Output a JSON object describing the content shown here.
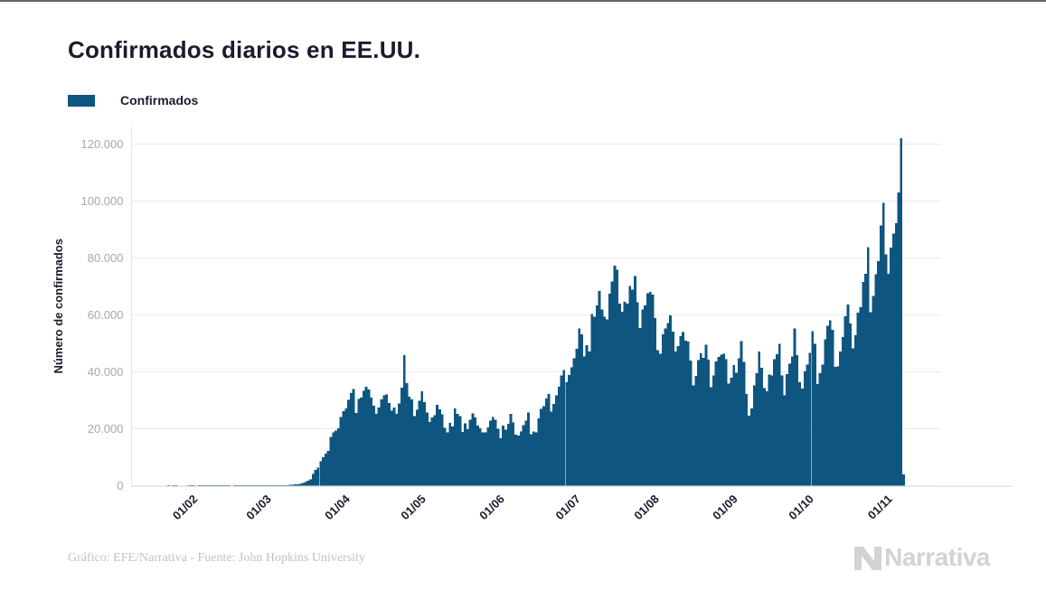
{
  "page": {
    "background": "#ffffff",
    "top_border_color": "#4a4a4a"
  },
  "header": {
    "title": "Confirmados diarios en EE.UU."
  },
  "legend": {
    "items": [
      {
        "label": "Confirmados",
        "color": "#0e5680"
      }
    ]
  },
  "chart_data": {
    "type": "bar",
    "title": "Confirmados diarios en EE.UU.",
    "xlabel": "",
    "ylabel": "Número de confirmados",
    "legend_position": "top-left",
    "grid": "horizontal",
    "bar_color": "#0e5680",
    "ylim": [
      0,
      126000
    ],
    "ytick_values": [
      0,
      20000,
      40000,
      60000,
      80000,
      100000,
      120000
    ],
    "ytick_labels": [
      "0",
      "20.000",
      "40.000",
      "60.000",
      "80.000",
      "100.000",
      "120.000"
    ],
    "x_ticks": [
      {
        "label": "01/02",
        "index": 10
      },
      {
        "label": "01/03",
        "index": 39
      },
      {
        "label": "01/04",
        "index": 70
      },
      {
        "label": "01/05",
        "index": 100
      },
      {
        "label": "01/06",
        "index": 131
      },
      {
        "label": "01/07",
        "index": 161
      },
      {
        "label": "01/08",
        "index": 192
      },
      {
        "label": "01/09",
        "index": 223
      },
      {
        "label": "01/10",
        "index": 253
      },
      {
        "label": "01/11",
        "index": 284
      }
    ],
    "series": [
      {
        "name": "Confirmados",
        "color": "#0e5680",
        "values": [
          1,
          0,
          1,
          3,
          0,
          0,
          0,
          0,
          2,
          1,
          1,
          0,
          2,
          1,
          2,
          1,
          1,
          2,
          1,
          2,
          3,
          1,
          2,
          2,
          1,
          0,
          2,
          1,
          2,
          1,
          3,
          2,
          4,
          3,
          5,
          6,
          6,
          7,
          8,
          30,
          25,
          35,
          55,
          70,
          110,
          120,
          100,
          130,
          270,
          330,
          400,
          520,
          680,
          900,
          1200,
          1800,
          2300,
          4200,
          5600,
          6300,
          8500,
          10000,
          11200,
          12200,
          17100,
          18700,
          19400,
          20200,
          24100,
          26200,
          27100,
          30100,
          32500,
          33900,
          25600,
          30400,
          30900,
          33300,
          34800,
          33800,
          30900,
          28100,
          25200,
          27400,
          30300,
          31700,
          32100,
          29100,
          26300,
          27500,
          25200,
          28900,
          34500,
          45900,
          36100,
          31200,
          30300,
          24400,
          26600,
          29800,
          33100,
          29400,
          25700,
          22400,
          23900,
          24800,
          28400,
          26900,
          25100,
          20300,
          18700,
          22100,
          20800,
          27200,
          25200,
          24500,
          18900,
          21900,
          19800,
          23200,
          25400,
          23900,
          21100,
          20100,
          18700,
          18800,
          20400,
          22800,
          24100,
          23100,
          20000,
          16700,
          21100,
          19700,
          21800,
          25300,
          22300,
          17900,
          17700,
          19000,
          21200,
          22900,
          25700,
          18100,
          19100,
          18700,
          23600,
          27000,
          27900,
          30600,
          32300,
          26100,
          28800,
          31800,
          34800,
          38800,
          40600,
          36300,
          38900,
          41600,
          44700,
          48100,
          55300,
          53200,
          45400,
          49300,
          47200,
          60300,
          59400,
          63300,
          68400,
          61900,
          59400,
          58400,
          67400,
          71800,
          77300,
          75800,
          63900,
          61100,
          64600,
          64000,
          70200,
          68900,
          73600,
          64400,
          55400,
          61900,
          63300,
          67700,
          68100,
          67100,
          58900,
          47700,
          46400,
          53200,
          55300,
          57200,
          59800,
          54200,
          47200,
          49100,
          52600,
          53900,
          51000,
          50600,
          44000,
          35200,
          38600,
          44100,
          46500,
          44900,
          49500,
          44300,
          34600,
          38800,
          43600,
          45200,
          46000,
          46300,
          44500,
          35800,
          38000,
          42400,
          39700,
          44700,
          50800,
          43500,
          32200,
          24600,
          27100,
          35300,
          39500,
          47100,
          41500,
          34300,
          33100,
          39000,
          38700,
          44400,
          46200,
          49800,
          38800,
          31800,
          39200,
          42900,
          45400,
          55300,
          45900,
          36400,
          34200,
          40100,
          42600,
          46700,
          54300,
          49900,
          35700,
          39500,
          42600,
          51500,
          56200,
          58100,
          54700,
          41800,
          41900,
          47200,
          52300,
          59500,
          63700,
          57000,
          48200,
          52800,
          60800,
          62700,
          71600,
          74400,
          83800,
          61000,
          66600,
          74300,
          78900,
          91500,
          99300,
          81200,
          74500,
          83700,
          88600,
          92200,
          103000,
          122000,
          3900
        ]
      }
    ]
  },
  "footer": {
    "credit": "Gráfico: EFE/Narrativa - Fuente: John Hopkins University",
    "logo_text": "Narrativa"
  },
  "colors": {
    "bar": "#0e5680",
    "title_text": "#1b1b2d",
    "axis_tick_text": "#a8a8a8",
    "x_tick_text": "#1b1b2d",
    "gridline": "#ececec",
    "axis_line": "#e6e6e6",
    "credit_text": "#c2c2c2",
    "logo_gray": "#d3d3d3"
  }
}
